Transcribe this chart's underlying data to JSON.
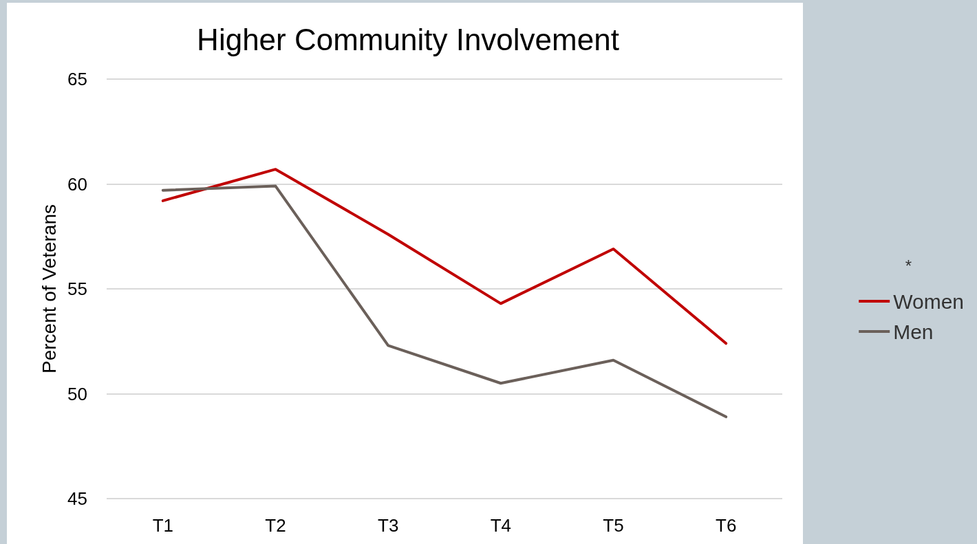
{
  "chart_data": {
    "type": "line",
    "title": "Higher Community Involvement",
    "ylabel": "Percent of Veterans",
    "categories": [
      "T1",
      "T2",
      "T3",
      "T4",
      "T5",
      "T6"
    ],
    "series": [
      {
        "name": "Women",
        "color": "#c00000",
        "values": [
          59.2,
          60.7,
          57.6,
          54.3,
          56.9,
          52.4
        ]
      },
      {
        "name": "Men",
        "color": "#6b605a",
        "values": [
          59.7,
          59.9,
          52.3,
          50.5,
          51.6,
          48.9
        ]
      }
    ],
    "ylim": [
      45,
      65
    ],
    "yticks": [
      45,
      50,
      55,
      60,
      65
    ],
    "grid": "y",
    "legend": "right",
    "marker": "none",
    "line_style": "solid",
    "annotations": [
      "*"
    ]
  }
}
